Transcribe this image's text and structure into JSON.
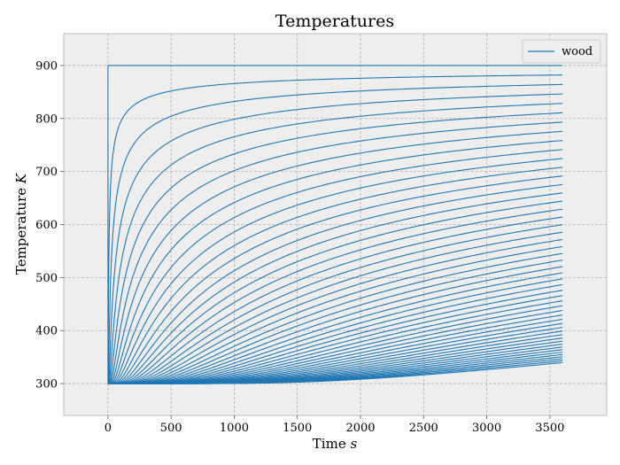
{
  "chart_data": {
    "type": "line",
    "title": "Temperatures",
    "xlabel": "Time",
    "xlabel_unit": "s",
    "ylabel": "Temperature",
    "ylabel_unit": "K",
    "xlim": [
      -350,
      3950
    ],
    "ylim": [
      240,
      960
    ],
    "x_ticks": [
      0,
      500,
      1000,
      1500,
      2000,
      2500,
      3000,
      3500
    ],
    "y_ticks": [
      300,
      400,
      500,
      600,
      700,
      800,
      900
    ],
    "grid": true,
    "legend_position": "top-right",
    "series": [
      {
        "name": "wood",
        "color": "#1f77b4",
        "curve_family": {
          "model": "1D transient conduction, depth profiles",
          "count": 50,
          "t_start": 0,
          "t_end": 3600,
          "initial_temperature": 300,
          "surface_temperature": 900
        }
      }
    ]
  }
}
